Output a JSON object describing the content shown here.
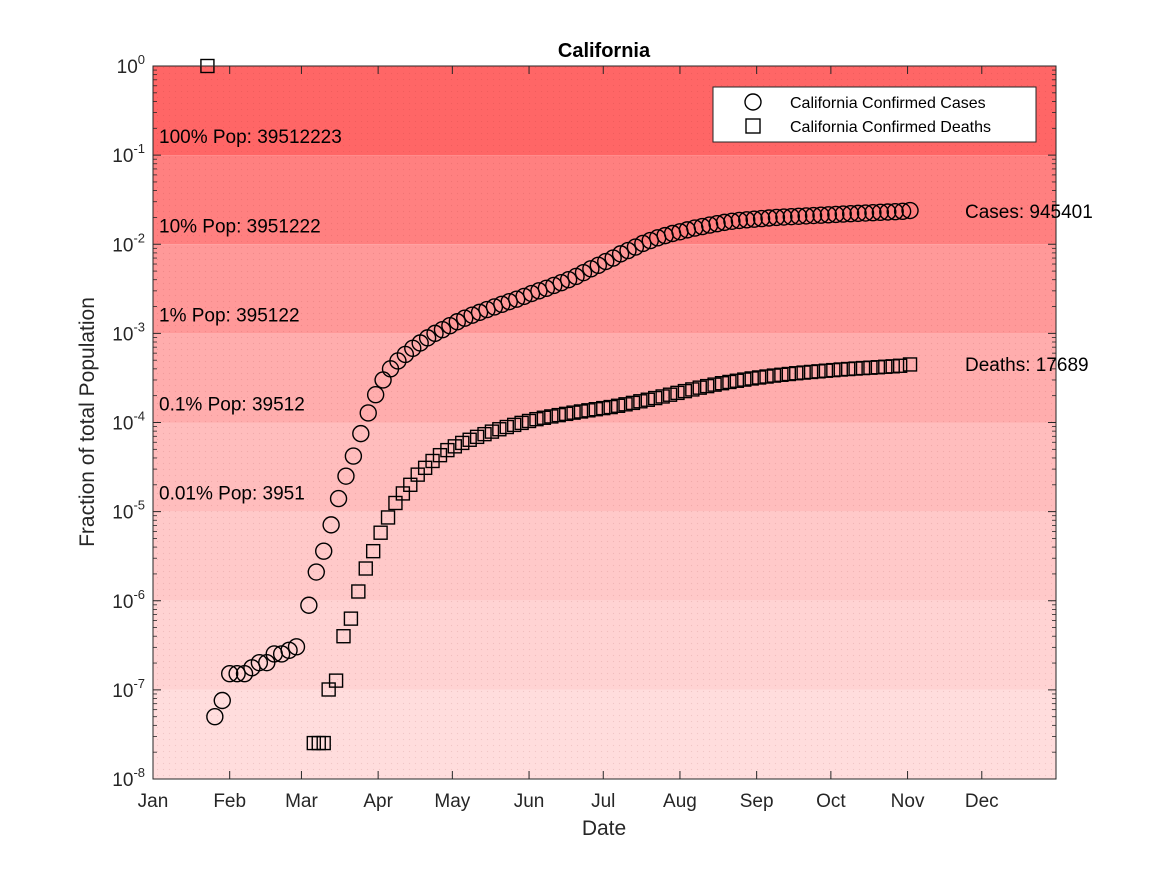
{
  "chart_data": {
    "type": "scatter",
    "title": "California",
    "xlabel": "Date",
    "ylabel": "Fraction of total Population",
    "yscale": "log",
    "ylim": [
      1e-08,
      1
    ],
    "xlim": [
      "2020-01-01",
      "2020-12-31"
    ],
    "x_ticks": [
      "Jan",
      "Feb",
      "Mar",
      "Apr",
      "May",
      "Jun",
      "Jul",
      "Aug",
      "Sep",
      "Oct",
      "Nov",
      "Dec"
    ],
    "y_ticks": [
      {
        "base": "10",
        "exp": "-8"
      },
      {
        "base": "10",
        "exp": "-7"
      },
      {
        "base": "10",
        "exp": "-6"
      },
      {
        "base": "10",
        "exp": "-5"
      },
      {
        "base": "10",
        "exp": "-4"
      },
      {
        "base": "10",
        "exp": "-3"
      },
      {
        "base": "10",
        "exp": "-2"
      },
      {
        "base": "10",
        "exp": "-1"
      },
      {
        "base": "10",
        "exp": "0"
      }
    ],
    "bands": [
      {
        "label": "100% Pop: 39512223",
        "color": "#ff6666"
      },
      {
        "label": "10% Pop: 3951222",
        "color": "#ff8080"
      },
      {
        "label": "1% Pop: 395122",
        "color": "#ff9999"
      },
      {
        "label": "0.1% Pop: 39512",
        "color": "#ffadad"
      },
      {
        "label": "0.01% Pop: 3951",
        "color": "#ffbdbd"
      },
      {
        "label": "",
        "color": "#ffc9c9"
      },
      {
        "label": "",
        "color": "#ffd3d3"
      },
      {
        "label": "",
        "color": "#ffdddd"
      }
    ],
    "legend": {
      "position": "top-right",
      "entries": [
        "California Confirmed Cases",
        "California Confirmed Deaths"
      ]
    },
    "end_labels": {
      "cases": "Cases: 945401",
      "deaths": "Deaths: 17689"
    },
    "series": [
      {
        "name": "California Confirmed Cases",
        "marker": "circle",
        "points": [
          [
            "2020-01-26",
            5e-08
          ],
          [
            "2020-01-29",
            7.6e-08
          ],
          [
            "2020-02-01",
            1.52e-07
          ],
          [
            "2020-02-04",
            1.52e-07
          ],
          [
            "2020-02-07",
            1.52e-07
          ],
          [
            "2020-02-10",
            1.77e-07
          ],
          [
            "2020-02-13",
            2.02e-07
          ],
          [
            "2020-02-16",
            2.02e-07
          ],
          [
            "2020-02-19",
            2.53e-07
          ],
          [
            "2020-02-22",
            2.53e-07
          ],
          [
            "2020-02-25",
            2.78e-07
          ],
          [
            "2020-02-28",
            3.04e-07
          ],
          [
            "2020-03-04",
            8.9e-07
          ],
          [
            "2020-03-07",
            2.1e-06
          ],
          [
            "2020-03-10",
            3.6e-06
          ],
          [
            "2020-03-13",
            7.1e-06
          ],
          [
            "2020-03-16",
            1.4e-05
          ],
          [
            "2020-03-19",
            2.5e-05
          ],
          [
            "2020-03-22",
            4.2e-05
          ],
          [
            "2020-03-25",
            7.5e-05
          ],
          [
            "2020-03-28",
            0.000128
          ],
          [
            "2020-03-31",
            0.000205
          ],
          [
            "2020-04-03",
            0.0003
          ],
          [
            "2020-04-06",
            0.0004
          ],
          [
            "2020-04-09",
            0.00049
          ],
          [
            "2020-04-12",
            0.00058
          ],
          [
            "2020-04-15",
            0.00068
          ],
          [
            "2020-04-18",
            0.00078
          ],
          [
            "2020-04-21",
            0.00089
          ],
          [
            "2020-04-24",
            0.001
          ],
          [
            "2020-04-27",
            0.0011
          ],
          [
            "2020-04-30",
            0.00122
          ],
          [
            "2020-05-03",
            0.00135
          ],
          [
            "2020-05-06",
            0.00148
          ],
          [
            "2020-05-09",
            0.0016
          ],
          [
            "2020-05-12",
            0.00172
          ],
          [
            "2020-05-15",
            0.00185
          ],
          [
            "2020-05-18",
            0.00198
          ],
          [
            "2020-05-21",
            0.00212
          ],
          [
            "2020-05-24",
            0.00227
          ],
          [
            "2020-05-27",
            0.00242
          ],
          [
            "2020-05-30",
            0.0026
          ],
          [
            "2020-06-02",
            0.0028
          ],
          [
            "2020-06-05",
            0.003
          ],
          [
            "2020-06-08",
            0.0032
          ],
          [
            "2020-06-11",
            0.00345
          ],
          [
            "2020-06-14",
            0.0037
          ],
          [
            "2020-06-17",
            0.004
          ],
          [
            "2020-06-20",
            0.00435
          ],
          [
            "2020-06-23",
            0.0048
          ],
          [
            "2020-06-26",
            0.0053
          ],
          [
            "2020-06-29",
            0.0058
          ],
          [
            "2020-07-02",
            0.0064
          ],
          [
            "2020-07-05",
            0.007
          ],
          [
            "2020-07-08",
            0.0078
          ],
          [
            "2020-07-11",
            0.0085
          ],
          [
            "2020-07-14",
            0.0093
          ],
          [
            "2020-07-17",
            0.0102
          ],
          [
            "2020-07-20",
            0.011
          ],
          [
            "2020-07-23",
            0.0118
          ],
          [
            "2020-07-26",
            0.0125
          ],
          [
            "2020-07-29",
            0.0132
          ],
          [
            "2020-08-01",
            0.0138
          ],
          [
            "2020-08-04",
            0.0145
          ],
          [
            "2020-08-07",
            0.0152
          ],
          [
            "2020-08-10",
            0.0158
          ],
          [
            "2020-08-13",
            0.0164
          ],
          [
            "2020-08-16",
            0.017
          ],
          [
            "2020-08-19",
            0.0176
          ],
          [
            "2020-08-22",
            0.0181
          ],
          [
            "2020-08-25",
            0.0185
          ],
          [
            "2020-08-28",
            0.0188
          ],
          [
            "2020-08-31",
            0.0191
          ],
          [
            "2020-09-03",
            0.0194
          ],
          [
            "2020-09-06",
            0.0197
          ],
          [
            "2020-09-09",
            0.02
          ],
          [
            "2020-09-12",
            0.0202
          ],
          [
            "2020-09-15",
            0.0204
          ],
          [
            "2020-09-18",
            0.0206
          ],
          [
            "2020-09-21",
            0.0208
          ],
          [
            "2020-09-24",
            0.021
          ],
          [
            "2020-09-27",
            0.0212
          ],
          [
            "2020-09-30",
            0.0214
          ],
          [
            "2020-10-03",
            0.0216
          ],
          [
            "2020-10-06",
            0.0218
          ],
          [
            "2020-10-09",
            0.022
          ],
          [
            "2020-10-12",
            0.0222
          ],
          [
            "2020-10-15",
            0.0224
          ],
          [
            "2020-10-18",
            0.0226
          ],
          [
            "2020-10-21",
            0.0228
          ],
          [
            "2020-10-24",
            0.023
          ],
          [
            "2020-10-27",
            0.0232
          ],
          [
            "2020-10-30",
            0.0234
          ],
          [
            "2020-11-02",
            0.0239
          ]
        ]
      },
      {
        "name": "California Confirmed Deaths",
        "marker": "square",
        "points": [
          [
            "2020-01-23",
            1.0
          ],
          [
            "2020-03-06",
            2.53e-08
          ],
          [
            "2020-03-08",
            2.53e-08
          ],
          [
            "2020-03-10",
            2.53e-08
          ],
          [
            "2020-03-12",
            1.01e-07
          ],
          [
            "2020-03-15",
            1.27e-07
          ],
          [
            "2020-03-18",
            4e-07
          ],
          [
            "2020-03-21",
            6.3e-07
          ],
          [
            "2020-03-24",
            1.27e-06
          ],
          [
            "2020-03-27",
            2.3e-06
          ],
          [
            "2020-03-30",
            3.6e-06
          ],
          [
            "2020-04-02",
            5.8e-06
          ],
          [
            "2020-04-05",
            8.6e-06
          ],
          [
            "2020-04-08",
            1.25e-05
          ],
          [
            "2020-04-11",
            1.6e-05
          ],
          [
            "2020-04-14",
            2e-05
          ],
          [
            "2020-04-17",
            2.6e-05
          ],
          [
            "2020-04-20",
            3.1e-05
          ],
          [
            "2020-04-23",
            3.7e-05
          ],
          [
            "2020-04-26",
            4.3e-05
          ],
          [
            "2020-04-29",
            4.9e-05
          ],
          [
            "2020-05-02",
            5.4e-05
          ],
          [
            "2020-05-05",
            5.9e-05
          ],
          [
            "2020-05-08",
            6.4e-05
          ],
          [
            "2020-05-11",
            6.9e-05
          ],
          [
            "2020-05-14",
            7.4e-05
          ],
          [
            "2020-05-17",
            7.9e-05
          ],
          [
            "2020-05-20",
            8.4e-05
          ],
          [
            "2020-05-23",
            8.9e-05
          ],
          [
            "2020-05-26",
            9.4e-05
          ],
          [
            "2020-05-29",
            9.9e-05
          ],
          [
            "2020-06-01",
            0.000104
          ],
          [
            "2020-06-04",
            0.000109
          ],
          [
            "2020-06-07",
            0.000113
          ],
          [
            "2020-06-10",
            0.000117
          ],
          [
            "2020-06-13",
            0.000121
          ],
          [
            "2020-06-16",
            0.000125
          ],
          [
            "2020-06-19",
            0.000129
          ],
          [
            "2020-06-22",
            0.000133
          ],
          [
            "2020-06-25",
            0.000137
          ],
          [
            "2020-06-28",
            0.000141
          ],
          [
            "2020-07-01",
            0.000145
          ],
          [
            "2020-07-04",
            0.000149
          ],
          [
            "2020-07-07",
            0.000154
          ],
          [
            "2020-07-10",
            0.00016
          ],
          [
            "2020-07-13",
            0.000166
          ],
          [
            "2020-07-16",
            0.000173
          ],
          [
            "2020-07-19",
            0.00018
          ],
          [
            "2020-07-22",
            0.000188
          ],
          [
            "2020-07-25",
            0.000196
          ],
          [
            "2020-07-28",
            0.000205
          ],
          [
            "2020-07-31",
            0.000215
          ],
          [
            "2020-08-03",
            0.000225
          ],
          [
            "2020-08-06",
            0.000235
          ],
          [
            "2020-08-09",
            0.000246
          ],
          [
            "2020-08-12",
            0.000256
          ],
          [
            "2020-08-15",
            0.000266
          ],
          [
            "2020-08-18",
            0.000276
          ],
          [
            "2020-08-21",
            0.000285
          ],
          [
            "2020-08-24",
            0.000294
          ],
          [
            "2020-08-27",
            0.000303
          ],
          [
            "2020-08-30",
            0.000312
          ],
          [
            "2020-09-02",
            0.00032
          ],
          [
            "2020-09-05",
            0.000328
          ],
          [
            "2020-09-08",
            0.000336
          ],
          [
            "2020-09-11",
            0.000343
          ],
          [
            "2020-09-14",
            0.00035
          ],
          [
            "2020-09-17",
            0.000357
          ],
          [
            "2020-09-20",
            0.000363
          ],
          [
            "2020-09-23",
            0.000369
          ],
          [
            "2020-09-26",
            0.000375
          ],
          [
            "2020-09-29",
            0.000381
          ],
          [
            "2020-10-02",
            0.000387
          ],
          [
            "2020-10-05",
            0.000393
          ],
          [
            "2020-10-08",
            0.000398
          ],
          [
            "2020-10-11",
            0.000403
          ],
          [
            "2020-10-14",
            0.000408
          ],
          [
            "2020-10-17",
            0.000412
          ],
          [
            "2020-10-20",
            0.000417
          ],
          [
            "2020-10-23",
            0.000422
          ],
          [
            "2020-10-26",
            0.000427
          ],
          [
            "2020-10-29",
            0.000433
          ],
          [
            "2020-11-02",
            0.000448
          ]
        ]
      }
    ]
  }
}
